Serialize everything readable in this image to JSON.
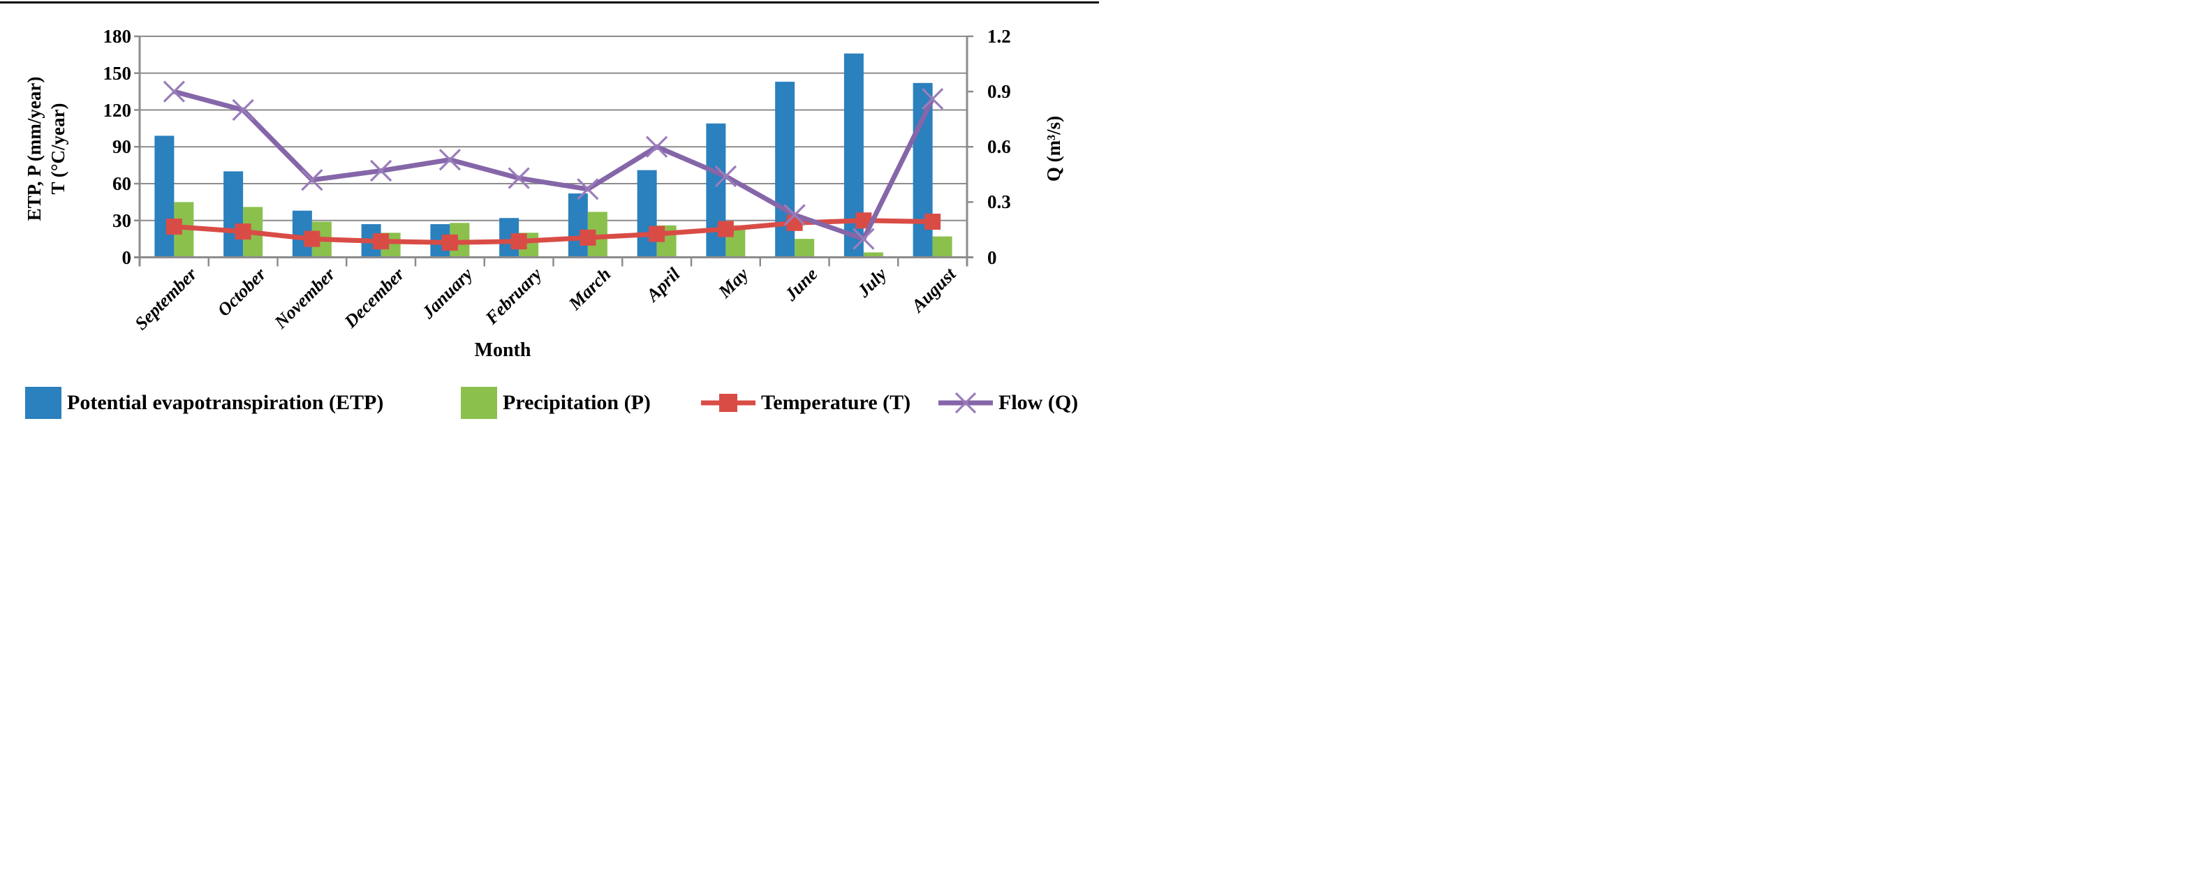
{
  "chart_data": {
    "type": "combo-bar-line",
    "categories": [
      "September",
      "October",
      "November",
      "December",
      "January",
      "February",
      "March",
      "April",
      "May",
      "June",
      "July",
      "August"
    ],
    "series": [
      {
        "name": "Potential evapotranspiration (ETP)",
        "type": "bar",
        "axis": "left",
        "color": "#2B80BE",
        "values": [
          99,
          70,
          38,
          27,
          27,
          32,
          52,
          71,
          109,
          143,
          166,
          142
        ]
      },
      {
        "name": "Precipitation (P)",
        "type": "bar",
        "axis": "left",
        "color": "#8BC04D",
        "values": [
          45,
          41,
          29,
          20,
          28,
          20,
          37,
          26,
          26,
          15,
          4,
          17
        ]
      },
      {
        "name": "Temperature (T)",
        "type": "line",
        "marker": "square",
        "axis": "left",
        "color": "#D94C46",
        "values": [
          25,
          21,
          15,
          13,
          12,
          13,
          16,
          19,
          23,
          28,
          30,
          29
        ]
      },
      {
        "name": "Flow (Q)",
        "type": "line",
        "marker": "x",
        "axis": "right",
        "color": "#8566A8",
        "marker_color": "#9A7CBA",
        "values": [
          0.9,
          0.8,
          0.42,
          0.47,
          0.53,
          0.43,
          0.37,
          0.6,
          0.44,
          0.23,
          0.1,
          0.86
        ]
      }
    ],
    "left_axis": {
      "titles": [
        "ETP, P (mm/year)",
        "T (°C/year)"
      ],
      "min": 0,
      "max": 180,
      "step": 30,
      "tick_labels": [
        "180",
        "150",
        "120",
        "90",
        "60",
        "30",
        "0"
      ]
    },
    "right_axis": {
      "title": "Q (m³/s)",
      "min": 0,
      "max": 1.2,
      "step": 0.3,
      "tick_labels": [
        "1.2",
        "0.9",
        "0.6",
        "0.3",
        "0"
      ]
    },
    "x_axis": {
      "title": "Month"
    },
    "legend_position": "bottom",
    "grid": true,
    "grid_color": "#8C8C8C",
    "axis_color": "#8C8C8C",
    "background_color": "#FFFFFF",
    "top_border_color": "#000000"
  }
}
